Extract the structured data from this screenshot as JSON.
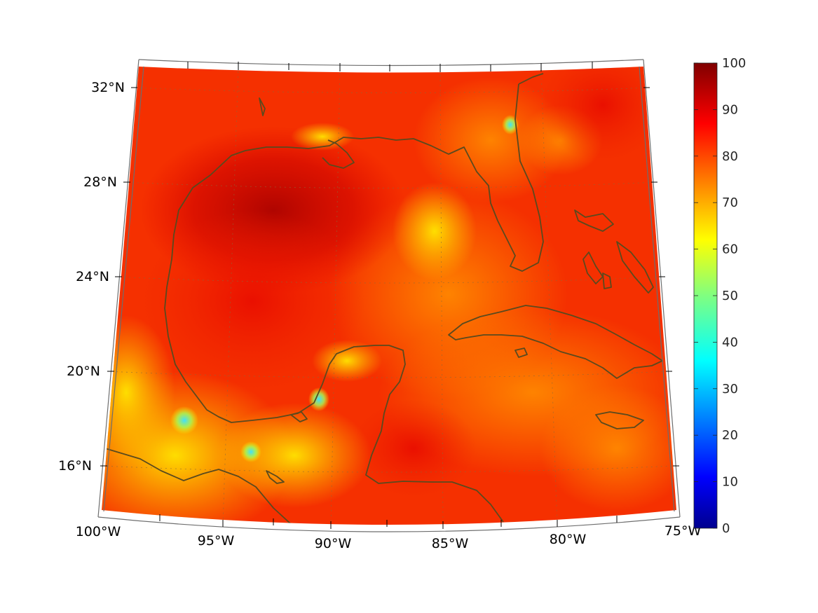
{
  "map": {
    "projection": "conic",
    "region": "Gulf of Mexico and Caribbean",
    "lon_range": [
      -100,
      -75
    ],
    "lat_range": [
      14,
      33
    ],
    "lat_tick_labels": [
      "32°N",
      "28°N",
      "24°N",
      "20°N",
      "16°N"
    ],
    "lon_tick_labels": [
      "100°W",
      "95°W",
      "90°W",
      "85°W",
      "80°W",
      "75°W"
    ],
    "grid": "dotted",
    "coastline_color": "#5a4a1e"
  },
  "colorbar": {
    "colormap": "jet",
    "range": [
      0,
      100
    ],
    "tick_labels": [
      "100",
      "90",
      "80",
      "70",
      "60",
      "50",
      "40",
      "30",
      "20",
      "10",
      "0"
    ]
  },
  "chart_data": {
    "type": "heatmap",
    "title": "",
    "xlabel": "",
    "ylabel": "",
    "value_range": [
      0,
      100
    ],
    "approx_field_values": [
      {
        "area": "western Gulf of Mexico",
        "value": 92
      },
      {
        "area": "central Gulf of Mexico",
        "value": 88
      },
      {
        "area": "eastern Gulf / west of Florida",
        "value": 78
      },
      {
        "area": "Caribbean Sea",
        "value": 80
      },
      {
        "area": "Atlantic east of Florida",
        "value": 85
      },
      {
        "area": "Central America / Bay of Campeche coast",
        "value": 65
      },
      {
        "area": "Yucatan Peninsula",
        "value": 72
      },
      {
        "area": "local minimum near 18°N 96°W",
        "value": 38
      },
      {
        "area": "local minimum near 16.8°N 93.5°W",
        "value": 42
      },
      {
        "area": "local minimum near 18.9°N 90.7°W",
        "value": 40
      },
      {
        "area": "local minimum near 30.4°N 81.7°W",
        "value": 45
      }
    ]
  }
}
